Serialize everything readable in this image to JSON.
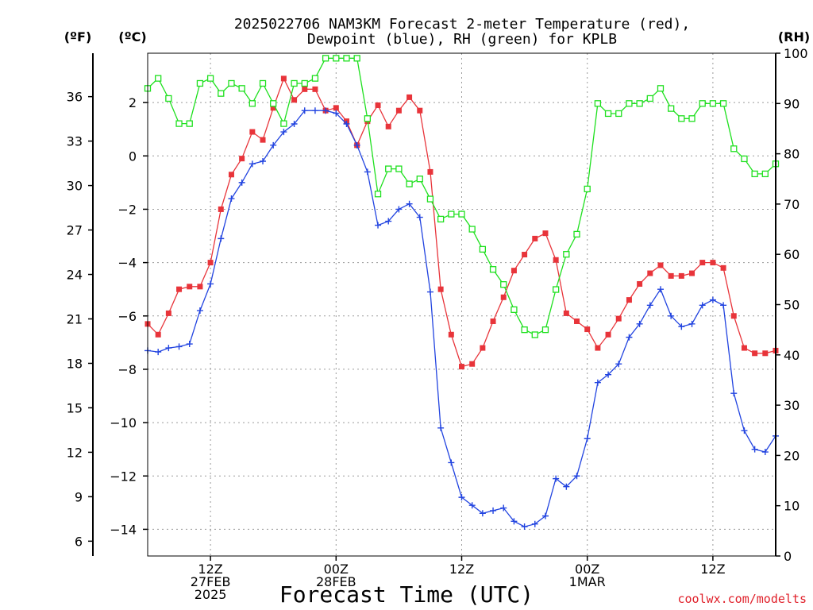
{
  "chart_data": {
    "type": "line",
    "title_line1": "2025022706 NAM3KM Forecast 2-meter Temperature (red),",
    "title_line2": "Dewpoint (blue), RH (green) for KPLB",
    "xlabel": "Forecast Time (UTC)",
    "credit": "coolwx.com/modelts",
    "units": {
      "fahrenheit": "(ºF)",
      "celsius": "(ºC)",
      "rh": "(RH)"
    },
    "x_unit": "forecast hour from 2025-02-27 06Z (hourly steps)",
    "x_ticks": [
      {
        "hour": 6,
        "lines": [
          "12Z",
          "27FEB",
          "2025"
        ]
      },
      {
        "hour": 18,
        "lines": [
          "00Z",
          "28FEB"
        ]
      },
      {
        "hour": 30,
        "lines": [
          "12Z"
        ]
      },
      {
        "hour": 42,
        "lines": [
          "00Z",
          "1MAR"
        ]
      },
      {
        "hour": 54,
        "lines": [
          "12Z"
        ]
      }
    ],
    "xlim": [
      0,
      60
    ],
    "celsius_ticks": [
      "2",
      "0",
      "−2",
      "−4",
      "−6",
      "−8",
      "−10",
      "−12",
      "−14"
    ],
    "celsius_tick_values": [
      2,
      0,
      -2,
      -4,
      -6,
      -8,
      -10,
      -12,
      -14
    ],
    "fahrenheit_ticks": [
      "36",
      "33",
      "30",
      "27",
      "24",
      "21",
      "18",
      "15",
      "12",
      "9",
      "6"
    ],
    "fahrenheit_tick_values": [
      36,
      33,
      30,
      27,
      24,
      21,
      18,
      15,
      12,
      9,
      6
    ],
    "rh_ticks": [
      "100",
      "90",
      "80",
      "70",
      "60",
      "50",
      "40",
      "30",
      "20",
      "10",
      "0"
    ],
    "rh_tick_values": [
      100,
      90,
      80,
      70,
      60,
      50,
      40,
      30,
      20,
      10,
      0
    ],
    "ylim_celsius": [
      -15,
      3.85
    ],
    "ylim_rh": [
      0,
      100
    ],
    "grid": true,
    "series": [
      {
        "name": "2-meter Temperature",
        "color": "#e8343a",
        "axis": "celsius",
        "marker": "filled-square",
        "x": [
          0,
          1,
          2,
          3,
          4,
          5,
          6,
          7,
          8,
          9,
          10,
          11,
          12,
          13,
          14,
          15,
          16,
          17,
          18,
          19,
          20,
          21,
          22,
          23,
          24,
          25,
          26,
          27,
          28,
          29,
          30,
          31,
          32,
          33,
          34,
          35,
          36,
          37,
          38,
          39,
          40,
          41,
          42,
          43,
          44,
          45,
          46,
          47,
          48,
          49,
          50,
          51,
          52,
          53,
          54,
          55,
          56,
          57,
          58,
          59,
          60
        ],
        "values": [
          -6.3,
          -6.7,
          -5.9,
          -5.0,
          -4.9,
          -4.9,
          -4.0,
          -2.0,
          -0.7,
          -0.1,
          0.9,
          0.6,
          1.8,
          2.9,
          2.1,
          2.5,
          2.5,
          1.7,
          1.8,
          1.3,
          0.4,
          1.3,
          1.9,
          1.1,
          1.7,
          2.2,
          1.7,
          -0.6,
          -5.0,
          -6.7,
          -7.9,
          -7.8,
          -7.2,
          -6.2,
          -5.3,
          -4.3,
          -3.7,
          -3.1,
          -2.9,
          -3.9,
          -5.9,
          -6.2,
          -6.5,
          -7.2,
          -6.7,
          -6.1,
          -5.4,
          -4.8,
          -4.4,
          -4.1,
          -4.5,
          -4.5,
          -4.4,
          -4.0,
          -4.0,
          -4.2,
          -6.0,
          -7.2,
          -7.4,
          -7.4,
          -7.3
        ]
      },
      {
        "name": "Dewpoint",
        "color": "#2244e0",
        "axis": "celsius",
        "marker": "plus",
        "x": [
          0,
          1,
          2,
          3,
          4,
          5,
          6,
          7,
          8,
          9,
          10,
          11,
          12,
          13,
          14,
          15,
          16,
          17,
          18,
          19,
          20,
          21,
          22,
          23,
          24,
          25,
          26,
          27,
          28,
          29,
          30,
          31,
          32,
          33,
          34,
          35,
          36,
          37,
          38,
          39,
          40,
          41,
          42,
          43,
          44,
          45,
          46,
          47,
          48,
          49,
          50,
          51,
          52,
          53,
          54,
          55,
          56,
          57,
          58,
          59,
          60
        ],
        "values": [
          -7.3,
          -7.35,
          -7.2,
          -7.15,
          -7.05,
          -5.8,
          -4.8,
          -3.1,
          -1.6,
          -1.0,
          -0.3,
          -0.2,
          0.4,
          0.9,
          1.2,
          1.7,
          1.7,
          1.7,
          1.6,
          1.2,
          0.4,
          -0.6,
          -2.6,
          -2.45,
          -2.0,
          -1.8,
          -2.3,
          -5.1,
          -10.2,
          -11.5,
          -12.8,
          -13.1,
          -13.4,
          -13.3,
          -13.2,
          -13.7,
          -13.9,
          -13.8,
          -13.5,
          -12.1,
          -12.4,
          -12.0,
          -10.6,
          -8.5,
          -8.2,
          -7.8,
          -6.8,
          -6.3,
          -5.6,
          -5.0,
          -6.0,
          -6.4,
          -6.3,
          -5.6,
          -5.4,
          -5.6,
          -8.9,
          -10.3,
          -11.0,
          -11.1,
          -10.5
        ]
      },
      {
        "name": "RH",
        "color": "#1ee01e",
        "axis": "rh",
        "marker": "open-square",
        "x": [
          0,
          1,
          2,
          3,
          4,
          5,
          6,
          7,
          8,
          9,
          10,
          11,
          12,
          13,
          14,
          15,
          16,
          17,
          18,
          19,
          20,
          21,
          22,
          23,
          24,
          25,
          26,
          27,
          28,
          29,
          30,
          31,
          32,
          33,
          34,
          35,
          36,
          37,
          38,
          39,
          40,
          41,
          42,
          43,
          44,
          45,
          46,
          47,
          48,
          49,
          50,
          51,
          52,
          53,
          54,
          55,
          56,
          57,
          58,
          59,
          60
        ],
        "values": [
          93,
          95,
          91,
          86,
          86,
          94,
          95,
          92,
          94,
          93,
          90,
          94,
          90,
          86,
          94,
          94,
          95,
          99,
          99,
          99,
          99,
          87,
          72,
          77,
          77,
          74,
          75,
          71,
          67,
          68,
          68,
          65,
          61,
          57,
          54,
          49,
          45,
          44,
          45,
          53,
          60,
          64,
          73,
          90,
          88,
          88,
          90,
          90,
          91,
          93,
          89,
          87,
          87,
          90,
          90,
          90,
          81,
          79,
          76,
          76,
          78
        ]
      }
    ]
  }
}
